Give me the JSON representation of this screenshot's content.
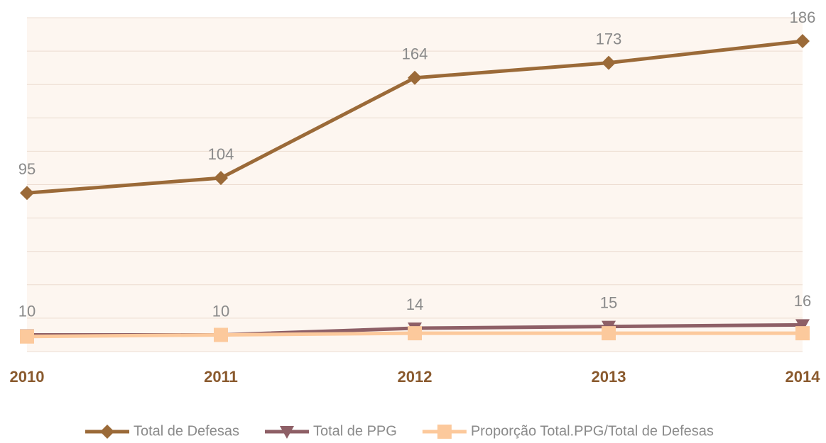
{
  "chart_data": {
    "type": "line",
    "categories": [
      "2010",
      "2011",
      "2012",
      "2013",
      "2014"
    ],
    "series": [
      {
        "name": "Total de Defesas",
        "color": "#9b6a38",
        "marker": "diamond",
        "values": [
          95,
          104,
          164,
          173,
          186
        ]
      },
      {
        "name": "Total de PPG",
        "color": "#8e5f66",
        "marker": "triangle-down",
        "values": [
          10,
          10,
          14,
          15,
          16
        ]
      },
      {
        "name": "Proporção Total.PPG/Total de Defesas",
        "color": "#fcc99c",
        "marker": "square",
        "values": [
          9,
          10,
          11,
          11,
          11
        ]
      }
    ],
    "ylim": [
      0,
      200
    ],
    "yticks": [
      0,
      20,
      40,
      60,
      80,
      100,
      120,
      140,
      160,
      180,
      200
    ],
    "grid": true,
    "legend": "bottom"
  }
}
